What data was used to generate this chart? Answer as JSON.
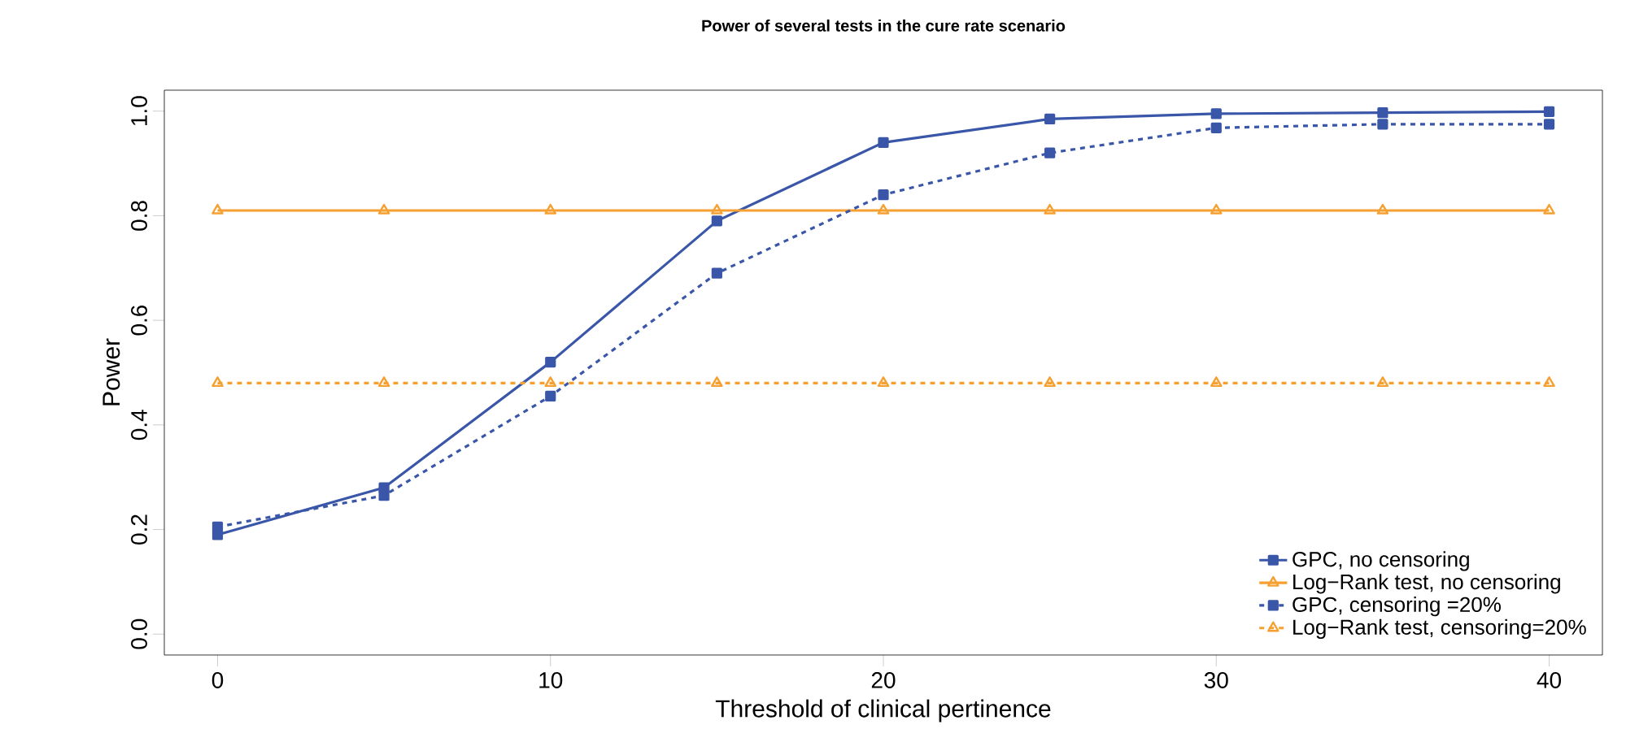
{
  "chart_data": {
    "type": "line",
    "title": "Power of several tests in the cure rate scenario",
    "xlabel": "Threshold of clinical pertinence",
    "ylabel": "Power",
    "x": [
      0,
      5,
      10,
      15,
      20,
      25,
      30,
      35,
      40
    ],
    "series": [
      {
        "name": "GPC, no censoring",
        "color": "#3a56a8",
        "marker": "square",
        "line_style": "solid",
        "values": [
          0.19,
          0.28,
          0.52,
          0.79,
          0.94,
          0.985,
          0.995,
          0.997,
          0.999
        ]
      },
      {
        "name": "Log−Rank test, no censoring",
        "color": "#f5a031",
        "marker": "triangle",
        "line_style": "solid",
        "values": [
          0.81,
          0.81,
          0.81,
          0.81,
          0.81,
          0.81,
          0.81,
          0.81,
          0.81
        ]
      },
      {
        "name": "GPC, censoring =20%",
        "color": "#3a56a8",
        "marker": "square",
        "line_style": "dashed",
        "values": [
          0.205,
          0.265,
          0.455,
          0.69,
          0.84,
          0.92,
          0.968,
          0.975,
          0.975
        ]
      },
      {
        "name": "Log−Rank test, censoring=20%",
        "color": "#f5a031",
        "marker": "triangle",
        "line_style": "dashed",
        "values": [
          0.48,
          0.48,
          0.48,
          0.48,
          0.48,
          0.48,
          0.48,
          0.48,
          0.48
        ]
      }
    ],
    "xlim": [
      -1.6,
      41.6
    ],
    "ylim": [
      -0.04,
      1.04
    ],
    "xticks": [
      0,
      10,
      20,
      30,
      40
    ],
    "yticks": [
      {
        "value": 0,
        "label": "0.0"
      },
      {
        "value": 0.2,
        "label": "0.2"
      },
      {
        "value": 0.4,
        "label": "0.4"
      },
      {
        "value": 0.6,
        "label": "0.6"
      },
      {
        "value": 0.8,
        "label": "0.8"
      },
      {
        "value": 1,
        "label": "1.0"
      }
    ],
    "grid": false,
    "legend": "bottom right"
  }
}
